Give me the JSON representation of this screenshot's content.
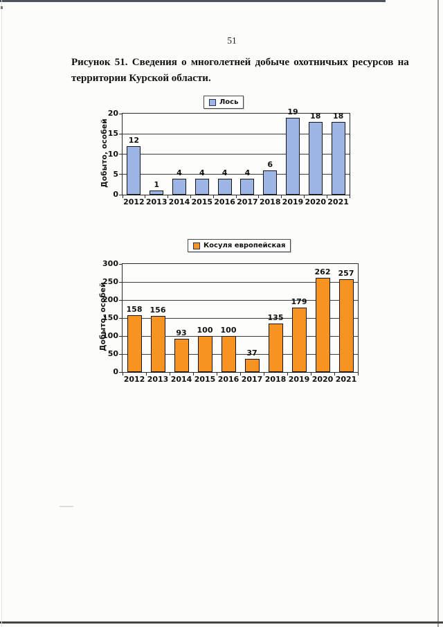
{
  "page": {
    "number": "51",
    "title_line1": "Рисунок 51. Сведения о многолетней добыче охотничьих ресурсов на",
    "title_line2": "территории Курской области."
  },
  "chart_data": [
    {
      "type": "bar",
      "legend": "Лось",
      "categories": [
        "2012",
        "2013",
        "2014",
        "2015",
        "2016",
        "2017",
        "2018",
        "2019",
        "2020",
        "2021"
      ],
      "values": [
        12,
        1,
        4,
        4,
        4,
        4,
        6,
        19,
        18,
        18
      ],
      "title": "",
      "xlabel": "",
      "ylabel": "Добыто, особей",
      "ylim": [
        0,
        20
      ],
      "yticks": [
        0,
        5,
        10,
        15,
        20
      ],
      "grid": true,
      "legend_position": "top-center",
      "bar_color": "#9cb5e5",
      "bar_border_color": "#141414"
    },
    {
      "type": "bar",
      "legend": "Косуля европейская",
      "categories": [
        "2012",
        "2013",
        "2014",
        "2015",
        "2016",
        "2017",
        "2018",
        "2019",
        "2020",
        "2021"
      ],
      "values": [
        158,
        156,
        93,
        100,
        100,
        37,
        135,
        179,
        262,
        257
      ],
      "title": "",
      "xlabel": "",
      "ylabel": "Добыто, особей",
      "ylim": [
        0,
        300
      ],
      "yticks": [
        0,
        50,
        100,
        150,
        200,
        250,
        300
      ],
      "grid": true,
      "legend_position": "top-center",
      "bar_color": "#f79421",
      "bar_border_color": "#141414"
    }
  ]
}
